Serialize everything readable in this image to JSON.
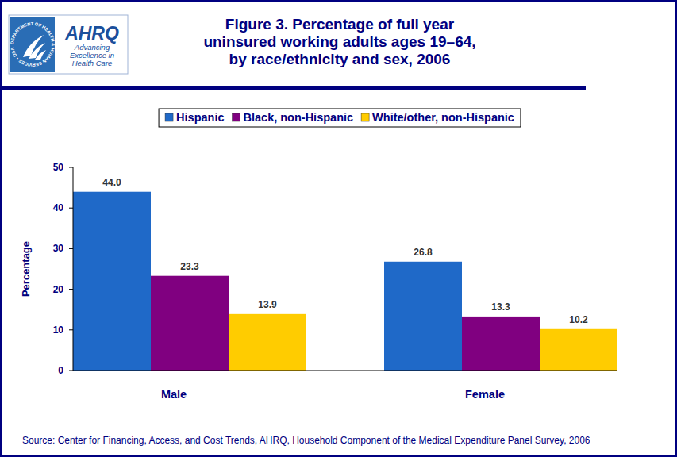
{
  "chart_data": {
    "type": "bar",
    "title": "Figure 3. Percentage of full year\nuninsured working adults ages 19–64,\nby race/ethnicity and sex, 2006",
    "y_label": "Percentage",
    "source": "Source: Center for Financing, Access, and Cost Trends, AHRQ, Household Component of the Medical Expenditure Panel Survey, 2006",
    "categories": [
      "Male",
      "Female"
    ],
    "series": [
      {
        "name": "Hispanic",
        "color": "#1f69c8",
        "values": [
          44.0,
          26.8
        ],
        "value_labels": [
          "44.0",
          "26.8"
        ]
      },
      {
        "name": "Black, non-Hispanic",
        "color": "#800080",
        "values": [
          23.3,
          13.3
        ],
        "value_labels": [
          "23.3",
          "13.3"
        ]
      },
      {
        "name": "White/other, non-Hispanic",
        "color": "#ffcc00",
        "values": [
          13.9,
          10.2
        ],
        "value_labels": [
          "13.9",
          "10.2"
        ]
      }
    ],
    "ylim": [
      0,
      50
    ],
    "yticks": [
      0,
      10,
      20,
      30,
      40,
      50
    ],
    "grid": false,
    "legend": "top",
    "data_labels": true
  },
  "logo": {
    "seal": "DEPARTMENT OF HEALTH & HUMAN SERVICES • USA",
    "name": "AHRQ",
    "tagline": [
      "Advancing",
      "Excellence in",
      "Health Care"
    ]
  }
}
